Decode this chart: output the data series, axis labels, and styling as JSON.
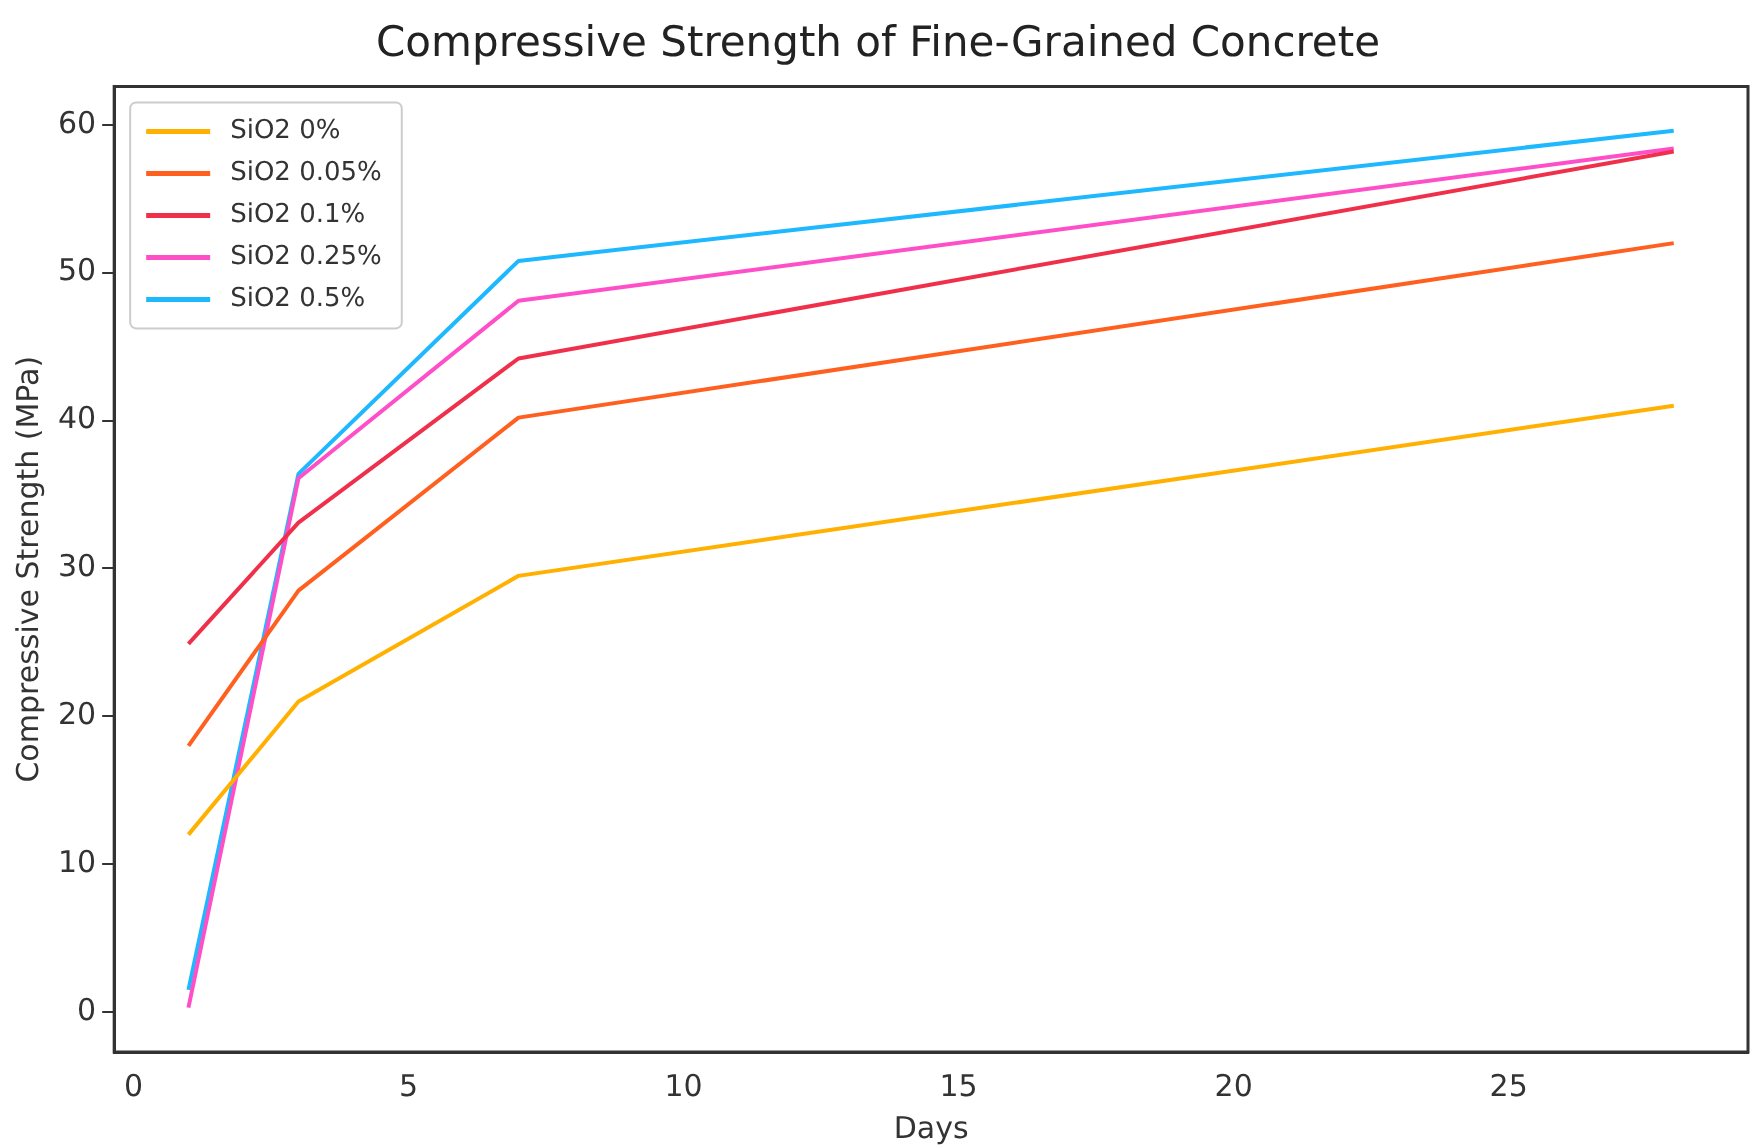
{
  "chart_data": {
    "type": "line",
    "title": "Compressive Strength of Fine-Grained Concrete",
    "xlabel": "Days",
    "ylabel": "Compressive Strength (MPa)",
    "x": [
      1,
      3,
      7,
      28
    ],
    "series": [
      {
        "name": "SiO2 0%",
        "color": "#ffb000",
        "values": [
          12,
          21,
          29.5,
          41
        ]
      },
      {
        "name": "SiO2 0.05%",
        "color": "#ff5f1f",
        "values": [
          18,
          28.5,
          40.2,
          52
        ]
      },
      {
        "name": "SiO2 0.1%",
        "color": "#f0304a",
        "values": [
          24.9,
          33.1,
          44.2,
          58.2
        ]
      },
      {
        "name": "SiO2 0.25%",
        "color": "#ff4fc8",
        "values": [
          0.3,
          36.1,
          48.1,
          58.4
        ]
      },
      {
        "name": "SiO2 0.5%",
        "color": "#1eb8ff",
        "values": [
          1.5,
          36.4,
          50.8,
          59.6
        ]
      }
    ],
    "xlim": [
      -0.35,
      29.35
    ],
    "xticks": [
      0,
      5,
      10,
      15,
      20,
      25
    ],
    "ylim": [
      -2.7,
      62.6
    ],
    "yticks": [
      0,
      10,
      20,
      30,
      40,
      50,
      60
    ],
    "grid": false,
    "legend": "top left",
    "marker": "none",
    "line_style": "solid"
  }
}
